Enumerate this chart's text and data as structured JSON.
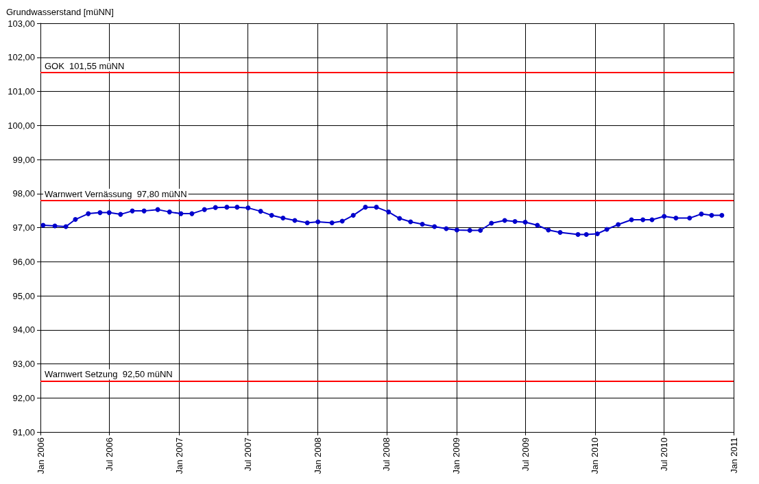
{
  "chart_data": {
    "type": "line",
    "ylabel": "Grundwasserstand [müNN]",
    "x": [
      "2006-01-08",
      "2006-02-08",
      "2006-03-09",
      "2006-04-03",
      "2006-05-07",
      "2006-06-07",
      "2006-07-01",
      "2006-07-31",
      "2006-08-31",
      "2006-10-01",
      "2006-11-06",
      "2006-12-07",
      "2007-01-06",
      "2007-02-04",
      "2007-03-09",
      "2007-04-07",
      "2007-05-07",
      "2007-06-03",
      "2007-07-02",
      "2007-08-04",
      "2007-09-02",
      "2007-10-02",
      "2007-11-02",
      "2007-12-05",
      "2008-01-02",
      "2008-02-08",
      "2008-03-06",
      "2008-04-04",
      "2008-05-06",
      "2008-06-04",
      "2008-07-06",
      "2008-08-04",
      "2008-09-02",
      "2008-10-03",
      "2008-11-04",
      "2008-12-05",
      "2009-01-02",
      "2009-02-05",
      "2009-03-05",
      "2009-04-03",
      "2009-05-08",
      "2009-06-04",
      "2009-07-01",
      "2009-08-02",
      "2009-08-31",
      "2009-10-01",
      "2009-11-17",
      "2009-12-09",
      "2010-01-07",
      "2010-02-01",
      "2010-03-03",
      "2010-04-07",
      "2010-05-07",
      "2010-05-31",
      "2010-07-02",
      "2010-08-02",
      "2010-09-07",
      "2010-10-08",
      "2010-11-04",
      "2010-12-01"
    ],
    "series": [
      {
        "color": "#0000cc",
        "values": [
          97.07,
          97.05,
          97.03,
          97.24,
          97.41,
          97.44,
          97.44,
          97.39,
          97.49,
          97.49,
          97.53,
          97.46,
          97.41,
          97.41,
          97.53,
          97.59,
          97.6,
          97.6,
          97.58,
          97.48,
          97.36,
          97.28,
          97.21,
          97.14,
          97.17,
          97.14,
          97.19,
          97.36,
          97.6,
          97.6,
          97.46,
          97.27,
          97.17,
          97.1,
          97.03,
          96.97,
          96.93,
          96.92,
          96.92,
          97.13,
          97.21,
          97.18,
          97.16,
          97.07,
          96.93,
          96.86,
          96.8,
          96.8,
          96.82,
          96.95,
          97.09,
          97.23,
          97.23,
          97.23,
          97.33,
          97.28,
          97.28,
          97.4,
          97.36,
          97.36
        ]
      }
    ],
    "marker": "circle",
    "line_style": "solid",
    "grid": true,
    "xlim": [
      "2006-01-01",
      "2011-01-01"
    ],
    "xticks": [
      {
        "value": "2006-01-01",
        "label": "Jan 2006"
      },
      {
        "value": "2006-07-01",
        "label": "Jul 2006"
      },
      {
        "value": "2007-01-01",
        "label": "Jan 2007"
      },
      {
        "value": "2007-07-01",
        "label": "Jul 2007"
      },
      {
        "value": "2008-01-01",
        "label": "Jan 2008"
      },
      {
        "value": "2008-07-01",
        "label": "Jul 2008"
      },
      {
        "value": "2009-01-01",
        "label": "Jan 2009"
      },
      {
        "value": "2009-07-01",
        "label": "Jul 2009"
      },
      {
        "value": "2010-01-01",
        "label": "Jan 2010"
      },
      {
        "value": "2010-07-01",
        "label": "Jul 2010"
      },
      {
        "value": "2011-01-01",
        "label": "Jan 2011"
      }
    ],
    "ylim": [
      91,
      103
    ],
    "yticks": [
      {
        "value": 91,
        "label": "91,00"
      },
      {
        "value": 92,
        "label": "92,00"
      },
      {
        "value": 93,
        "label": "93,00"
      },
      {
        "value": 94,
        "label": "94,00"
      },
      {
        "value": 95,
        "label": "95,00"
      },
      {
        "value": 96,
        "label": "96,00"
      },
      {
        "value": 97,
        "label": "97,00"
      },
      {
        "value": 98,
        "label": "98,00"
      },
      {
        "value": 99,
        "label": "99,00"
      },
      {
        "value": 100,
        "label": "100,00"
      },
      {
        "value": 101,
        "label": "101,00"
      },
      {
        "value": 102,
        "label": "102,00"
      },
      {
        "value": 103,
        "label": "103,00"
      }
    ],
    "ref_lines": [
      {
        "axis": "y",
        "value": 101.55,
        "label": "GOK  101,55 müNN",
        "color": "#ff0000"
      },
      {
        "axis": "y",
        "value": 97.8,
        "label": "Warnwert Vernässung  97,80 müNN",
        "color": "#ff0000"
      },
      {
        "axis": "y",
        "value": 92.5,
        "label": "Warnwert Setzung  92,50 müNN",
        "color": "#ff0000"
      }
    ]
  }
}
